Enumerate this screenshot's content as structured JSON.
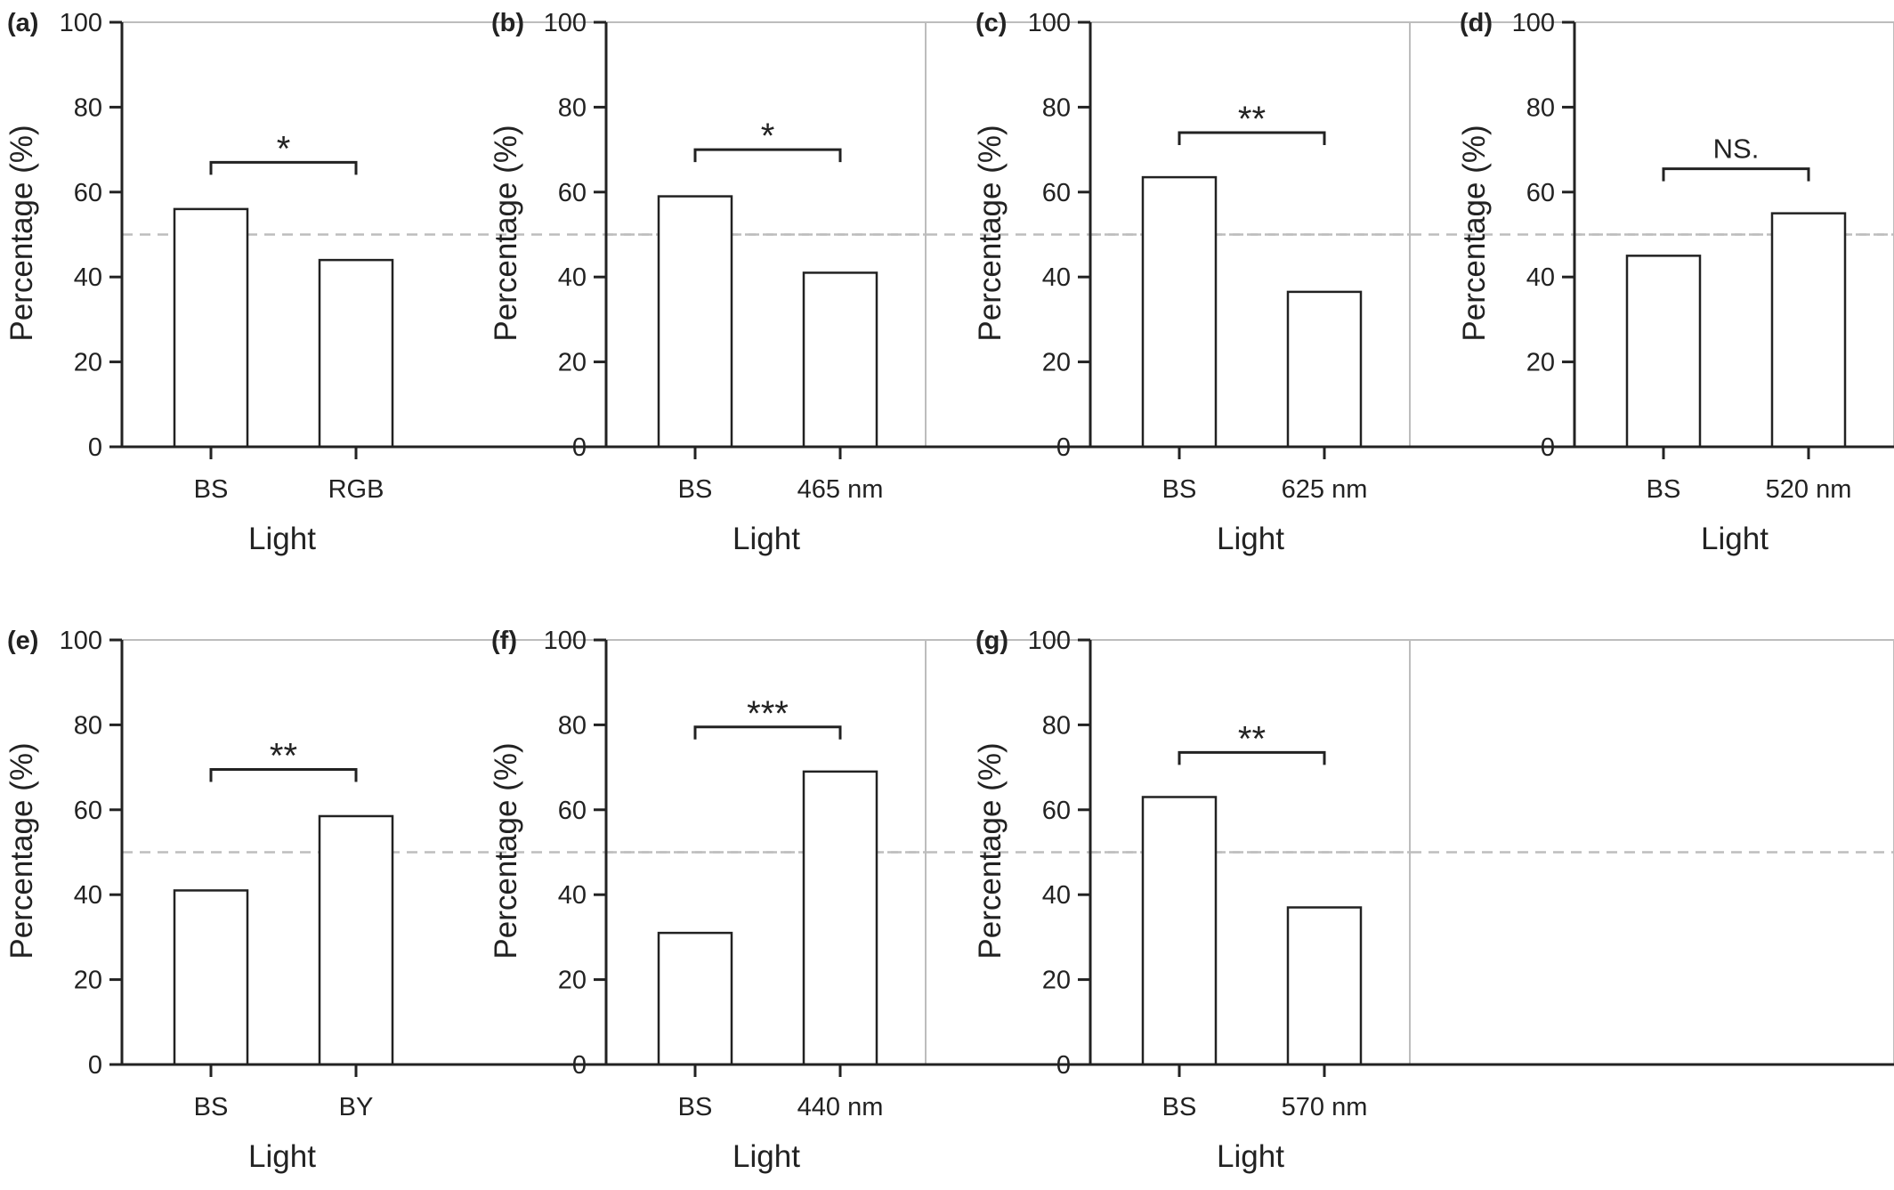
{
  "figure": {
    "colors": {
      "bar_fill": "#ffffff",
      "bar_stroke": "#222222",
      "axis": "#222222",
      "frame": "#bdbdbd",
      "reference_line": "#bdbdbd",
      "text": "#222222"
    }
  },
  "chart_data": [
    {
      "panel_label": "(a)",
      "type": "bar",
      "categories": [
        "BS",
        "RGB"
      ],
      "values": [
        56,
        44
      ],
      "xlabel": "Light",
      "ylabel": "Percentage (%)",
      "ylim": [
        0,
        100
      ],
      "yticks": [
        0,
        20,
        40,
        60,
        80,
        100
      ],
      "reference_line": 50,
      "significance": "*",
      "bracket_y": 67
    },
    {
      "panel_label": "(b)",
      "type": "bar",
      "categories": [
        "BS",
        "465 nm"
      ],
      "values": [
        59,
        41
      ],
      "xlabel": "Light",
      "ylabel": "Percentage (%)",
      "ylim": [
        0,
        100
      ],
      "yticks": [
        0,
        20,
        40,
        60,
        80,
        100
      ],
      "reference_line": 50,
      "significance": "*",
      "bracket_y": 70
    },
    {
      "panel_label": "(c)",
      "type": "bar",
      "categories": [
        "BS",
        "625 nm"
      ],
      "values": [
        63.5,
        36.5
      ],
      "xlabel": "Light",
      "ylabel": "Percentage (%)",
      "ylim": [
        0,
        100
      ],
      "yticks": [
        0,
        20,
        40,
        60,
        80,
        100
      ],
      "reference_line": 50,
      "significance": "**",
      "bracket_y": 74
    },
    {
      "panel_label": "(d)",
      "type": "bar",
      "categories": [
        "BS",
        "520 nm"
      ],
      "values": [
        45,
        55
      ],
      "xlabel": "Light",
      "ylabel": "Percentage (%)",
      "ylim": [
        0,
        100
      ],
      "yticks": [
        0,
        20,
        40,
        60,
        80,
        100
      ],
      "reference_line": 50,
      "significance": "NS.",
      "bracket_y": 65.5
    },
    {
      "panel_label": "(e)",
      "type": "bar",
      "categories": [
        "BS",
        "BY"
      ],
      "values": [
        41,
        58.5
      ],
      "xlabel": "Light",
      "ylabel": "Percentage (%)",
      "ylim": [
        0,
        100
      ],
      "yticks": [
        0,
        20,
        40,
        60,
        80,
        100
      ],
      "reference_line": 50,
      "significance": "**",
      "bracket_y": 69.5
    },
    {
      "panel_label": "(f)",
      "type": "bar",
      "categories": [
        "BS",
        "440 nm"
      ],
      "values": [
        31,
        69
      ],
      "xlabel": "Light",
      "ylabel": "Percentage (%)",
      "ylim": [
        0,
        100
      ],
      "yticks": [
        0,
        20,
        40,
        60,
        80,
        100
      ],
      "reference_line": 50,
      "significance": "***",
      "bracket_y": 79.5
    },
    {
      "panel_label": "(g)",
      "type": "bar",
      "categories": [
        "BS",
        "570 nm"
      ],
      "values": [
        63,
        37
      ],
      "xlabel": "Light",
      "ylabel": "Percentage (%)",
      "ylim": [
        0,
        100
      ],
      "yticks": [
        0,
        20,
        40,
        60,
        80,
        100
      ],
      "reference_line": 50,
      "significance": "**",
      "bracket_y": 73.5
    }
  ]
}
